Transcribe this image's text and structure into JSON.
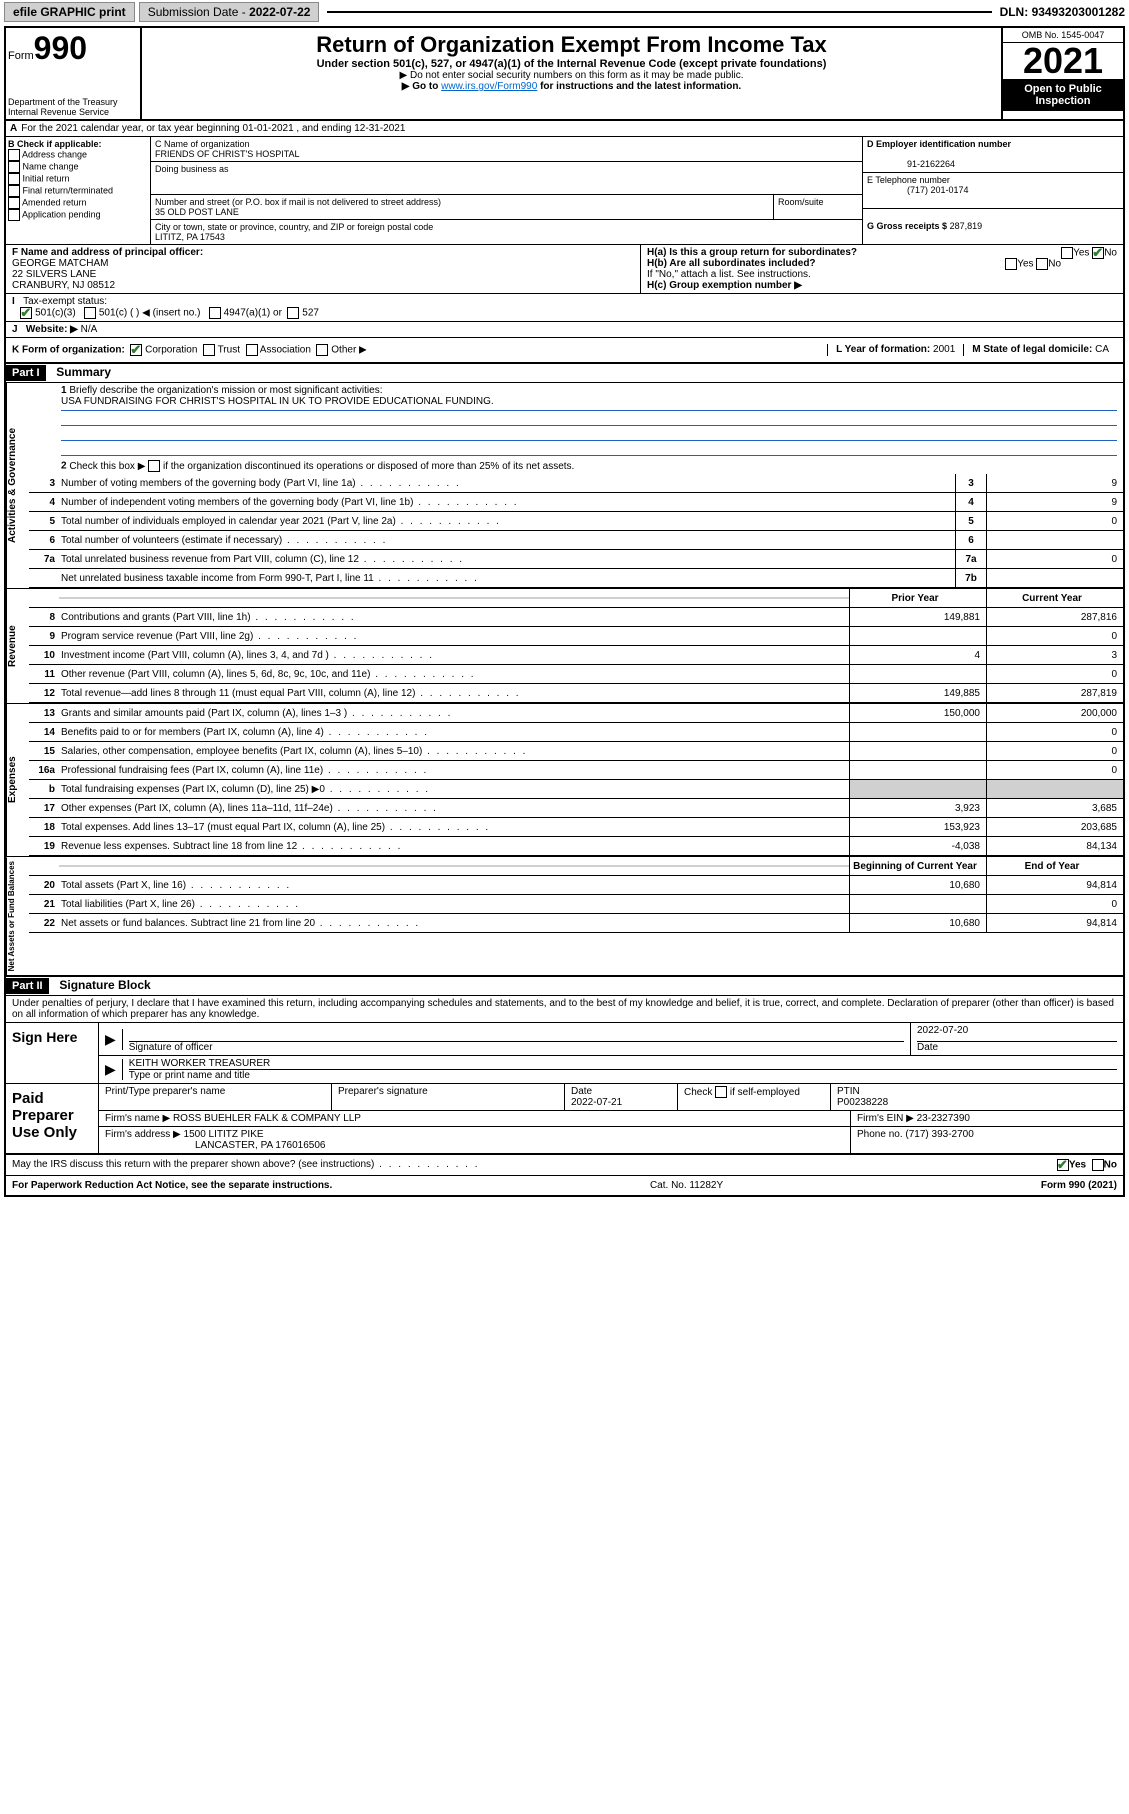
{
  "topbar": {
    "efile": "efile GRAPHIC print",
    "subdate_label": "Submission Date - ",
    "subdate": "2022-07-22",
    "dln_label": "DLN: ",
    "dln": "93493203001282"
  },
  "header": {
    "form_prefix": "Form",
    "form_num": "990",
    "title": "Return of Organization Exempt From Income Tax",
    "subtitle": "Under section 501(c), 527, or 4947(a)(1) of the Internal Revenue Code (except private foundations)",
    "note1": "▶ Do not enter social security numbers on this form as it may be made public.",
    "note2_pre": "▶ Go to ",
    "note2_link": "www.irs.gov/Form990",
    "note2_post": " for instructions and the latest information.",
    "dept": "Department of the Treasury",
    "irs": "Internal Revenue Service",
    "omb": "OMB No. 1545-0047",
    "year": "2021",
    "open": "Open to Public Inspection"
  },
  "row_a": {
    "label_a": "A",
    "text": "For the 2021 calendar year, or tax year beginning 01-01-2021   , and ending 12-31-2021"
  },
  "col_b": {
    "label": "B Check if applicable:",
    "opt1": "Address change",
    "opt2": "Name change",
    "opt3": "Initial return",
    "opt4": "Final return/terminated",
    "opt5": "Amended return",
    "opt6": "Application pending"
  },
  "col_c": {
    "name_label": "C Name of organization",
    "name": "FRIENDS OF CHRIST'S HOSPITAL",
    "dba_label": "Doing business as",
    "dba": "",
    "street_label": "Number and street (or P.O. box if mail is not delivered to street address)",
    "street": "35 OLD POST LANE",
    "room_label": "Room/suite",
    "city_label": "City or town, state or province, country, and ZIP or foreign postal code",
    "city": "LITITZ, PA  17543"
  },
  "col_d": {
    "d_label": "D Employer identification number",
    "ein": "91-2162264",
    "e_label": "E Telephone number",
    "phone": "(717) 201-0174",
    "g_label": "G Gross receipts $",
    "gross": "287,819"
  },
  "row_f": {
    "f_label": "F  Name and address of principal officer:",
    "name": "GEORGE MATCHAM",
    "street": "22 SILVERS LANE",
    "city": "CRANBURY, NJ  08512",
    "ha_label": "H(a)  Is this a group return for subordinates?",
    "hb_label": "H(b)  Are all subordinates included?",
    "hb_note": "If \"No,\" attach a list. See instructions.",
    "hc_label": "H(c)  Group exemption number ▶",
    "yes": "Yes",
    "no": "No"
  },
  "row_i": {
    "label": "I",
    "tax_label": "Tax-exempt status:",
    "c3": "501(c)(3)",
    "c_other": "501(c) (  ) ◀ (insert no.)",
    "a4947": "4947(a)(1) or",
    "s527": "527"
  },
  "row_j": {
    "label": "J",
    "web_label": "Website: ▶",
    "web": "N/A"
  },
  "row_k": {
    "k_label": "K Form of organization:",
    "corp": "Corporation",
    "trust": "Trust",
    "assoc": "Association",
    "other": "Other ▶",
    "l_label": "L Year of formation:",
    "l_val": "2001",
    "m_label": "M State of legal domicile:",
    "m_val": "CA"
  },
  "part1": {
    "hdr": "Part I",
    "title": "Summary",
    "line1_label": "1",
    "line1_text": "Briefly describe the organization's mission or most significant activities:",
    "mission": "USA FUNDRAISING FOR CHRIST'S HOSPITAL IN UK TO PROVIDE EDUCATIONAL FUNDING.",
    "line2_label": "2",
    "line2_text": "Check this box ▶       if the organization discontinued its operations or disposed of more than 25% of its net assets.",
    "side1": "Activities & Governance",
    "side2": "Revenue",
    "side3": "Expenses",
    "side4": "Net Assets or Fund Balances",
    "col_prior": "Prior Year",
    "col_current": "Current Year",
    "col_begin": "Beginning of Current Year",
    "col_end": "End of Year",
    "rows_gov": [
      {
        "n": "3",
        "d": "Number of voting members of the governing body (Part VI, line 1a)",
        "b": "3",
        "v": "9"
      },
      {
        "n": "4",
        "d": "Number of independent voting members of the governing body (Part VI, line 1b)",
        "b": "4",
        "v": "9"
      },
      {
        "n": "5",
        "d": "Total number of individuals employed in calendar year 2021 (Part V, line 2a)",
        "b": "5",
        "v": "0"
      },
      {
        "n": "6",
        "d": "Total number of volunteers (estimate if necessary)",
        "b": "6",
        "v": ""
      },
      {
        "n": "7a",
        "d": "Total unrelated business revenue from Part VIII, column (C), line 12",
        "b": "7a",
        "v": "0"
      },
      {
        "n": "",
        "d": "Net unrelated business taxable income from Form 990-T, Part I, line 11",
        "b": "7b",
        "v": ""
      }
    ],
    "rows_rev": [
      {
        "n": "8",
        "d": "Contributions and grants (Part VIII, line 1h)",
        "p": "149,881",
        "c": "287,816"
      },
      {
        "n": "9",
        "d": "Program service revenue (Part VIII, line 2g)",
        "p": "",
        "c": "0"
      },
      {
        "n": "10",
        "d": "Investment income (Part VIII, column (A), lines 3, 4, and 7d )",
        "p": "4",
        "c": "3"
      },
      {
        "n": "11",
        "d": "Other revenue (Part VIII, column (A), lines 5, 6d, 8c, 9c, 10c, and 11e)",
        "p": "",
        "c": "0"
      },
      {
        "n": "12",
        "d": "Total revenue—add lines 8 through 11 (must equal Part VIII, column (A), line 12)",
        "p": "149,885",
        "c": "287,819"
      }
    ],
    "rows_exp": [
      {
        "n": "13",
        "d": "Grants and similar amounts paid (Part IX, column (A), lines 1–3 )",
        "p": "150,000",
        "c": "200,000"
      },
      {
        "n": "14",
        "d": "Benefits paid to or for members (Part IX, column (A), line 4)",
        "p": "",
        "c": "0"
      },
      {
        "n": "15",
        "d": "Salaries, other compensation, employee benefits (Part IX, column (A), lines 5–10)",
        "p": "",
        "c": "0"
      },
      {
        "n": "16a",
        "d": "Professional fundraising fees (Part IX, column (A), line 11e)",
        "p": "",
        "c": "0"
      },
      {
        "n": "b",
        "d": "Total fundraising expenses (Part IX, column (D), line 25) ▶0",
        "p": "SHADE",
        "c": "SHADE"
      },
      {
        "n": "17",
        "d": "Other expenses (Part IX, column (A), lines 11a–11d, 11f–24e)",
        "p": "3,923",
        "c": "3,685"
      },
      {
        "n": "18",
        "d": "Total expenses. Add lines 13–17 (must equal Part IX, column (A), line 25)",
        "p": "153,923",
        "c": "203,685"
      },
      {
        "n": "19",
        "d": "Revenue less expenses. Subtract line 18 from line 12",
        "p": "-4,038",
        "c": "84,134"
      }
    ],
    "rows_net": [
      {
        "n": "20",
        "d": "Total assets (Part X, line 16)",
        "p": "10,680",
        "c": "94,814"
      },
      {
        "n": "21",
        "d": "Total liabilities (Part X, line 26)",
        "p": "",
        "c": "0"
      },
      {
        "n": "22",
        "d": "Net assets or fund balances. Subtract line 21 from line 20",
        "p": "10,680",
        "c": "94,814"
      }
    ]
  },
  "part2": {
    "hdr": "Part II",
    "title": "Signature Block",
    "decl": "Under penalties of perjury, I declare that I have examined this return, including accompanying schedules and statements, and to the best of my knowledge and belief, it is true, correct, and complete. Declaration of preparer (other than officer) is based on all information of which preparer has any knowledge.",
    "sign_here": "Sign Here",
    "sig_officer": "Signature of officer",
    "sig_date": "2022-07-20",
    "date_label": "Date",
    "officer_name": "KEITH WORKER  TREASURER",
    "type_name": "Type or print name and title",
    "paid": "Paid Preparer Use Only",
    "prep_name_label": "Print/Type preparer's name",
    "prep_sig_label": "Preparer's signature",
    "prep_date_label": "Date",
    "prep_date": "2022-07-21",
    "check_self": "Check        if self-employed",
    "ptin_label": "PTIN",
    "ptin": "P00238228",
    "firm_name_label": "Firm's name    ▶",
    "firm_name": "ROSS BUEHLER FALK & COMPANY LLP",
    "firm_ein_label": "Firm's EIN ▶",
    "firm_ein": "23-2327390",
    "firm_addr_label": "Firm's address ▶",
    "firm_addr1": "1500 LITITZ PIKE",
    "firm_addr2": "LANCASTER, PA  176016506",
    "firm_phone_label": "Phone no.",
    "firm_phone": "(717) 393-2700",
    "discuss": "May the IRS discuss this return with the preparer shown above? (see instructions)",
    "yes": "Yes",
    "no": "No"
  },
  "footer": {
    "left": "For Paperwork Reduction Act Notice, see the separate instructions.",
    "mid": "Cat. No. 11282Y",
    "right": "Form 990 (2021)"
  }
}
